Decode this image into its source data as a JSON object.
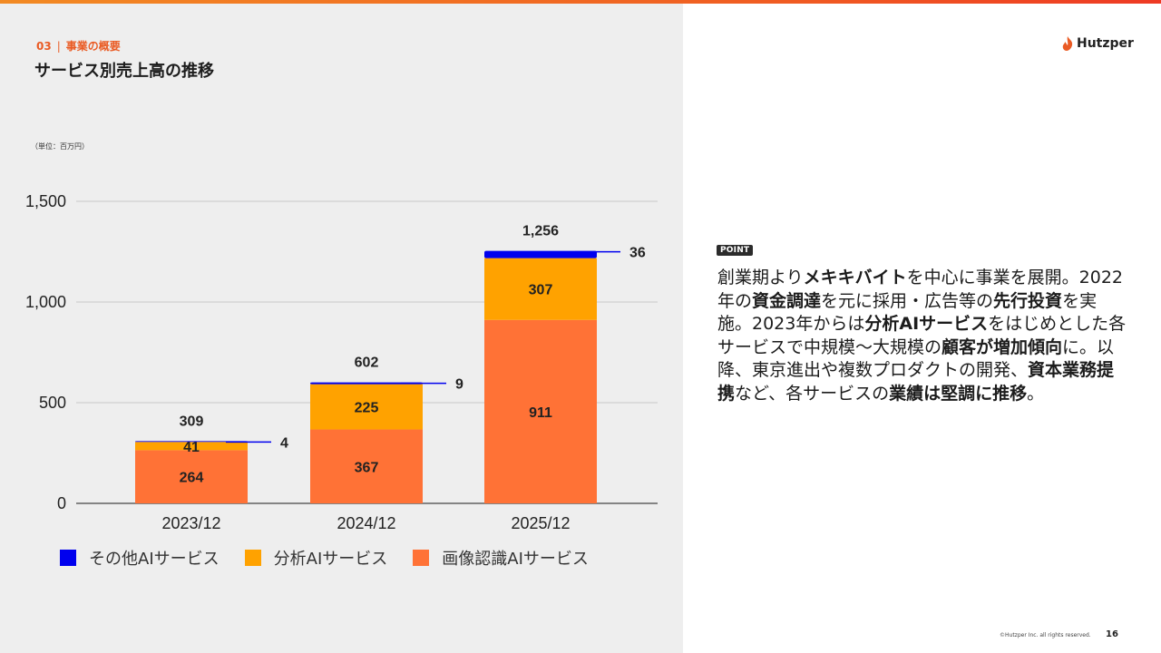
{
  "header": {
    "section_number": "03",
    "section_name": "事業の概要",
    "title": "サービス別売上高の推移"
  },
  "logo": {
    "text": "Hutzper",
    "icon": "flame-logo-icon"
  },
  "colors": {
    "accent": "#ea5b24",
    "series_other": "#0000ee",
    "series_analysis": "#ffa200",
    "series_image": "#ff7236",
    "panel_bg": "#eeeeee"
  },
  "chart_data": {
    "type": "bar",
    "stacked": true,
    "unit_note": "（単位：百万円）",
    "categories": [
      "2023/12",
      "2024/12",
      "2025/12"
    ],
    "series": [
      {
        "name": "画像認識AIサービス",
        "values": [
          264,
          367,
          911
        ]
      },
      {
        "name": "分析AIサービス",
        "values": [
          41,
          225,
          307
        ]
      },
      {
        "name": "その他AIサービス",
        "values": [
          4,
          9,
          36
        ]
      }
    ],
    "totals": [
      "309",
      "602",
      "1,256"
    ],
    "ylim": [
      0,
      1500
    ],
    "yticks": [
      0,
      500,
      1000,
      1500
    ],
    "ytick_labels": [
      "0",
      "500",
      "1,000",
      "1,500"
    ],
    "grid": true,
    "legend_position": "bottom",
    "legend_order": [
      "その他AIサービス",
      "分析AIサービス",
      "画像認識AIサービス"
    ]
  },
  "side_panel": {
    "badge": "POINT",
    "text_parts": [
      {
        "t": "創業期より",
        "b": false
      },
      {
        "t": "メキキバイト",
        "b": true
      },
      {
        "t": "を中心に事業を展開。2022年の",
        "b": false
      },
      {
        "t": "資金調達",
        "b": true
      },
      {
        "t": "を元に採用・広告等の",
        "b": false
      },
      {
        "t": "先行投資",
        "b": true
      },
      {
        "t": "を実施。2023年からは",
        "b": false
      },
      {
        "t": "分析AIサービス",
        "b": true
      },
      {
        "t": "をはじめとした各サービスで中規模〜大規模の",
        "b": false
      },
      {
        "t": "顧客が増加傾向",
        "b": true
      },
      {
        "t": "に。以降、東京進出や複数プロダクトの開発、",
        "b": false
      },
      {
        "t": "資本業務提携",
        "b": true
      },
      {
        "t": "など、各サービスの",
        "b": false
      },
      {
        "t": "業績は堅調に推移",
        "b": true
      },
      {
        "t": "。",
        "b": false
      }
    ]
  },
  "footer": {
    "copyright": "©Hutzper Inc. all rights reserved.",
    "page_number": "16"
  }
}
